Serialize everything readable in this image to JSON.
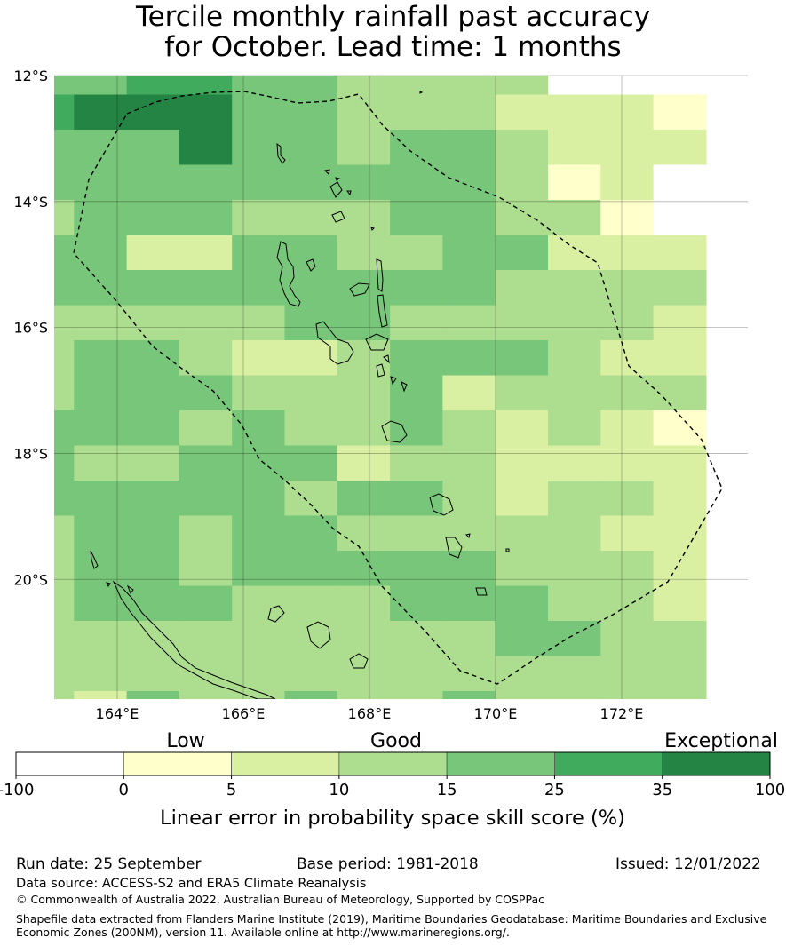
{
  "title": {
    "line1": "Tercile monthly rainfall past accuracy",
    "line2": "for October. Lead time: 1 months"
  },
  "map": {
    "lat_labels": [
      "12°S",
      "14°S",
      "16°S",
      "18°S",
      "20°S"
    ],
    "lon_labels": [
      "164°E",
      "166°E",
      "168°E",
      "170°E",
      "172°E"
    ],
    "lon_range": [
      163.0,
      174.0
    ],
    "lat_range": [
      -21.9,
      -12.0
    ],
    "grid_lines": true,
    "boundary": "dashed EEZ outline",
    "grid_rows": [
      "4455443333000",
      "5666443332221",
      "4446443443222",
      "4444444443120",
      "3444333443310",
      "4422443344222",
      "4444444443333",
      "3333344333332",
      "3443223444322",
      "3444333423333",
      "4443433432321",
      "4334442332222",
      "4444434432332",
      "3443443333322",
      "3443444443332",
      "3444333444332",
      "3333333334433",
      "3333333333333",
      "3243343343333",
      "3223332333333",
      "3233233233333",
      "2233333334444",
      "2222444333333"
    ]
  },
  "colorbar": {
    "labels": [
      "Low",
      "Good",
      "Exceptional"
    ],
    "ticks": [
      "-100",
      "0",
      "5",
      "10",
      "15",
      "25",
      "35",
      "100"
    ],
    "colors": [
      "#ffffff",
      "#ffffcc",
      "#d9f0a3",
      "#addd8e",
      "#78c679",
      "#41ab5d",
      "#238443"
    ],
    "axis_label": "Linear error in probability space skill score (%)"
  },
  "footer": {
    "run_date": "Run date: 25 September",
    "base_period": "Base period: 1981-2018",
    "issued": "Issued: 12/01/2022",
    "data_source": "Data source: ACCESS-S2 and ERA5 Climate Reanalysis",
    "copyright": "© Commonwealth of Australia 2022, Australian Bureau of Meteorology, Supported by COSPPac",
    "shapefile_1": "Shapefile data extracted from Flanders Marine Institute (2019), Maritime Boundaries Geodatabase: Maritime Boundaries and Exclusive",
    "shapefile_2": "Economic Zones (200NM), version 11. Available online at http://www.marineregions.org/."
  }
}
